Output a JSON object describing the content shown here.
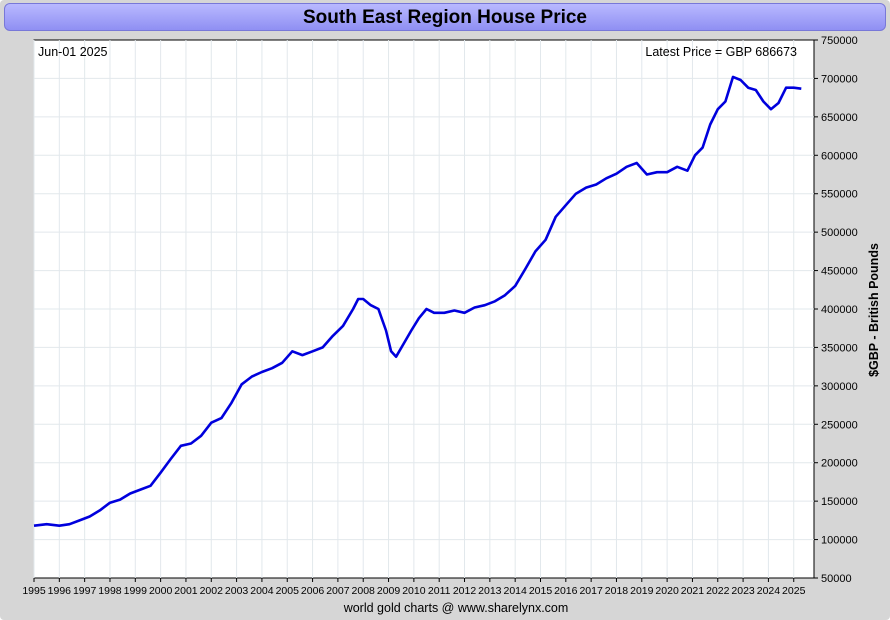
{
  "chart_data": {
    "type": "line",
    "title": "South East Region House Price",
    "date_label": "Jun-01  2025",
    "latest_label": "Latest Price = GBP 686673",
    "ylabel": "$GBP - British Pounds",
    "footer": "world gold charts @ www.sharelynx.com",
    "ylim": [
      50000,
      750000
    ],
    "xlim": [
      1995.0,
      2025.8
    ],
    "yticks": [
      50000,
      100000,
      150000,
      200000,
      250000,
      300000,
      350000,
      400000,
      450000,
      500000,
      550000,
      600000,
      650000,
      700000,
      750000
    ],
    "ytick_labels": [
      "50000",
      "100000",
      "150000",
      "200000",
      "250000",
      "300000",
      "350000",
      "400000",
      "450000",
      "500000",
      "550000",
      "600000",
      "650000",
      "700000",
      "750000"
    ],
    "xticks": [
      "1995",
      "1996",
      "1997",
      "1998",
      "1999",
      "2000",
      "2001",
      "2002",
      "2003",
      "2004",
      "2005",
      "2006",
      "2007",
      "2008",
      "2009",
      "2010",
      "2011",
      "2012",
      "2013",
      "2014",
      "2015",
      "2016",
      "2017",
      "2018",
      "2019",
      "2020",
      "2021",
      "2022",
      "2023",
      "2024",
      "2025"
    ],
    "grid": true,
    "line_color": "#0000dd",
    "series": [
      {
        "name": "South East Region House Price",
        "x": [
          1995.0,
          1995.5,
          1996.0,
          1996.4,
          1996.8,
          1997.2,
          1997.6,
          1998.0,
          1998.4,
          1998.8,
          1999.2,
          1999.6,
          2000.0,
          2000.4,
          2000.8,
          2001.2,
          2001.6,
          2002.0,
          2002.4,
          2002.8,
          2003.2,
          2003.6,
          2004.0,
          2004.4,
          2004.8,
          2005.2,
          2005.6,
          2006.0,
          2006.4,
          2006.8,
          2007.2,
          2007.6,
          2007.8,
          2008.0,
          2008.3,
          2008.6,
          2008.9,
          2009.1,
          2009.3,
          2009.6,
          2009.9,
          2010.2,
          2010.5,
          2010.8,
          2011.2,
          2011.6,
          2012.0,
          2012.4,
          2012.8,
          2013.2,
          2013.6,
          2014.0,
          2014.4,
          2014.8,
          2015.2,
          2015.6,
          2016.0,
          2016.4,
          2016.8,
          2017.2,
          2017.6,
          2018.0,
          2018.4,
          2018.8,
          2019.2,
          2019.6,
          2020.0,
          2020.4,
          2020.8,
          2021.1,
          2021.4,
          2021.7,
          2022.0,
          2022.3,
          2022.6,
          2022.9,
          2023.2,
          2023.5,
          2023.8,
          2024.1,
          2024.4,
          2024.7,
          2025.0,
          2025.3
        ],
        "values": [
          118000,
          120000,
          118000,
          120000,
          125000,
          130000,
          138000,
          148000,
          152000,
          160000,
          165000,
          170000,
          187000,
          205000,
          222000,
          225000,
          235000,
          252000,
          258000,
          278000,
          302000,
          312000,
          318000,
          323000,
          330000,
          345000,
          340000,
          345000,
          350000,
          365000,
          378000,
          400000,
          413000,
          413000,
          405000,
          400000,
          372000,
          345000,
          338000,
          355000,
          372000,
          388000,
          400000,
          395000,
          395000,
          398000,
          395000,
          402000,
          405000,
          410000,
          418000,
          430000,
          452000,
          475000,
          490000,
          520000,
          535000,
          550000,
          558000,
          562000,
          570000,
          576000,
          585000,
          590000,
          575000,
          578000,
          578000,
          585000,
          580000,
          600000,
          610000,
          640000,
          660000,
          670000,
          702000,
          698000,
          688000,
          685000,
          670000,
          660000,
          668000,
          688000,
          688000,
          686673
        ]
      }
    ]
  }
}
